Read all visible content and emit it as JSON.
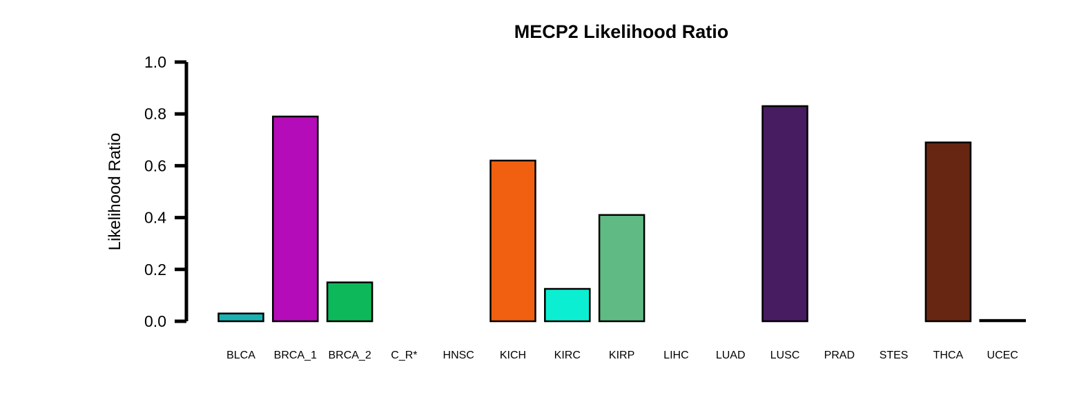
{
  "chart_data": {
    "type": "bar",
    "title": "MECP2 Likelihood Ratio",
    "xlabel": "",
    "ylabel": "Likelihood Ratio",
    "ylim": [
      0,
      1.0
    ],
    "yticks": [
      "0.0",
      "0.2",
      "0.4",
      "0.6",
      "0.8",
      "1.0"
    ],
    "ytick_values": [
      0,
      0.2,
      0.4,
      0.6,
      0.8,
      1.0
    ],
    "grid": false,
    "legend": "none",
    "categories": [
      "BLCA",
      "BRCA_1",
      "BRCA_2",
      "C_R*",
      "HNSC",
      "KICH",
      "KIRC",
      "KIRP",
      "LIHC",
      "LUAD",
      "LUSC",
      "PRAD",
      "STES",
      "THCA",
      "UCEC"
    ],
    "values": [
      0.03,
      0.79,
      0.15,
      0.0,
      0.0,
      0.62,
      0.125,
      0.41,
      0.0,
      0.0,
      0.83,
      0.0,
      0.0,
      0.69,
      0.005
    ],
    "colors": [
      "#1AB2B0",
      "#B40CB8",
      "#0DB85B",
      "#000000",
      "#000000",
      "#F06010",
      "#0CEED2",
      "#5FBB83",
      "#000000",
      "#000000",
      "#471C60",
      "#000000",
      "#000000",
      "#662612",
      "#000000"
    ]
  }
}
